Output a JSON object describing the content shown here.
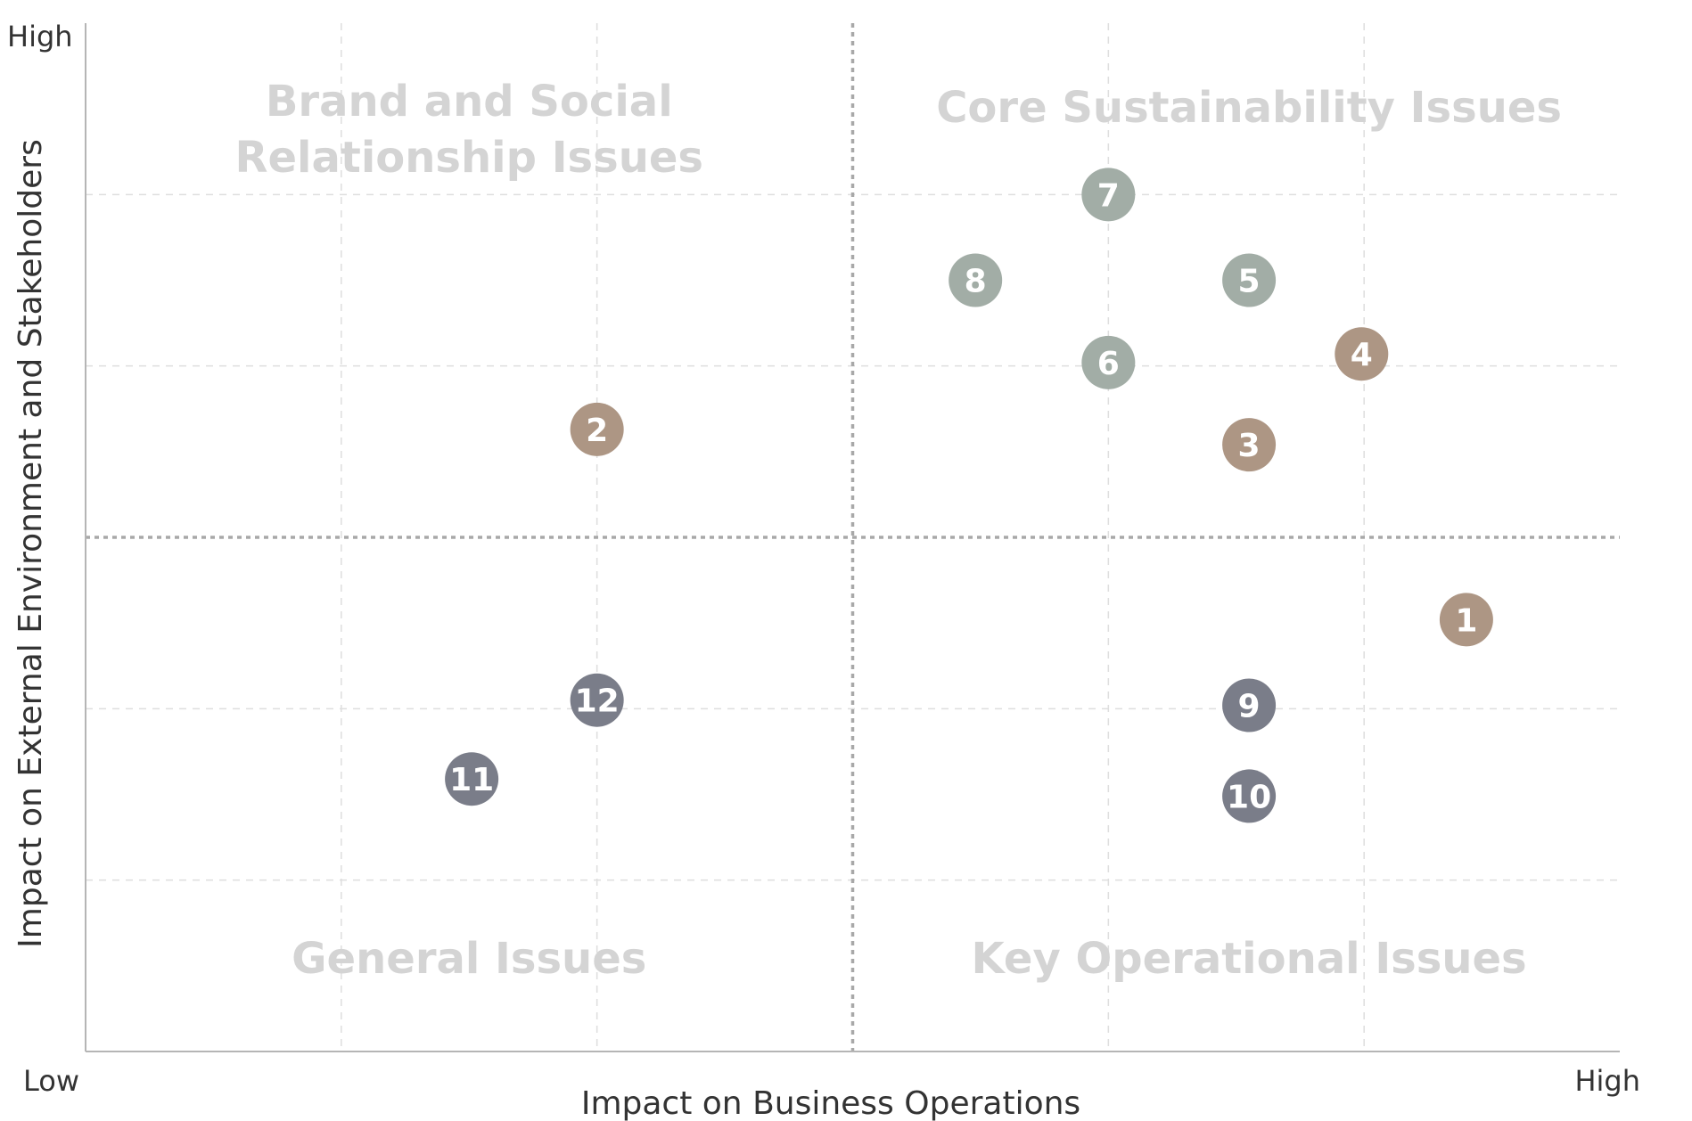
{
  "chart_data": {
    "type": "scatter",
    "title": "",
    "xlabel": "Impact on Business Operations",
    "ylabel": "Impact on External Environment and Stakeholders",
    "xlim": [
      0,
      6
    ],
    "ylim": [
      0,
      6
    ],
    "x_low_label": "Low",
    "x_high_label": "High",
    "y_high_label": "High",
    "divider_x": 3,
    "divider_y": 3,
    "grid_x": [
      1,
      2,
      4,
      5
    ],
    "grid_y": [
      1,
      2,
      4,
      5
    ],
    "quadrants": [
      {
        "name": "top-left",
        "lines": [
          "Brand and Social",
          "Relationship Issues"
        ]
      },
      {
        "name": "top-right",
        "lines": [
          "Core Sustainability Issues"
        ]
      },
      {
        "name": "bottom-left",
        "lines": [
          "General Issues"
        ]
      },
      {
        "name": "bottom-right",
        "lines": [
          "Key Operational Issues"
        ]
      }
    ],
    "groups": [
      {
        "name": "brown",
        "color": "#ad9684"
      },
      {
        "name": "sage",
        "color": "#a2ada6"
      },
      {
        "name": "slate",
        "color": "#7a7d89"
      }
    ],
    "points": [
      {
        "label": "1",
        "x": 5.4,
        "y": 2.52,
        "group": "brown"
      },
      {
        "label": "2",
        "x": 2.0,
        "y": 3.63,
        "group": "brown"
      },
      {
        "label": "3",
        "x": 4.55,
        "y": 3.54,
        "group": "brown"
      },
      {
        "label": "4",
        "x": 4.99,
        "y": 4.07,
        "group": "brown"
      },
      {
        "label": "5",
        "x": 4.55,
        "y": 4.5,
        "group": "sage"
      },
      {
        "label": "6",
        "x": 4.0,
        "y": 4.02,
        "group": "sage"
      },
      {
        "label": "7",
        "x": 4.0,
        "y": 5.0,
        "group": "sage"
      },
      {
        "label": "8",
        "x": 3.48,
        "y": 4.5,
        "group": "sage"
      },
      {
        "label": "9",
        "x": 4.55,
        "y": 2.02,
        "group": "slate"
      },
      {
        "label": "10",
        "x": 4.55,
        "y": 1.49,
        "group": "slate"
      },
      {
        "label": "11",
        "x": 1.51,
        "y": 1.59,
        "group": "slate"
      },
      {
        "label": "12",
        "x": 2.0,
        "y": 2.05,
        "group": "slate"
      }
    ]
  }
}
